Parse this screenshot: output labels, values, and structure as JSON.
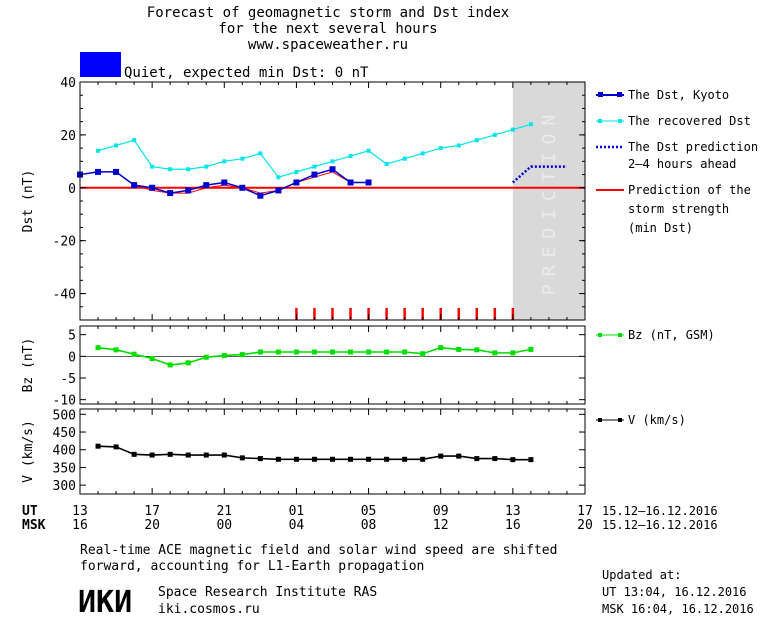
{
  "header": {
    "title_line1": "Forecast of geomagnetic storm and Dst index",
    "title_line2": "for the next several hours",
    "website": "www.spaceweather.ru",
    "status_text": "Quiet, expected min Dst: 0 nT",
    "status_color": "#0000ff"
  },
  "colors": {
    "dst_kyoto": "#0000cc",
    "recovered": "#00e5e5",
    "prediction_line": "#ff0000",
    "bz": "#00dd00",
    "v": "#000000",
    "prediction_band": "#d9d9d9",
    "prediction_label": "#ebebeb"
  },
  "prediction_label": "PREDICTION",
  "x_axis": {
    "ut_label": "UT",
    "msk_label": "MSK",
    "ut_ticks": [
      "13",
      "17",
      "21",
      "01",
      "05",
      "09",
      "13",
      "17"
    ],
    "msk_ticks": [
      "16",
      "20",
      "00",
      "04",
      "08",
      "12",
      "16",
      "20"
    ],
    "ut_range": "15.12–16.12.2016",
    "msk_range": "15.12–16.12.2016"
  },
  "chart_data": [
    {
      "type": "line",
      "panel": "dst",
      "ylabel": "Dst (nT)",
      "ylim": [
        -50,
        40
      ],
      "yticks": [
        40,
        20,
        0,
        -20,
        -40
      ],
      "x_hours_ut_from_13": true,
      "series": [
        {
          "name": "The Dst, Kyoto",
          "x": [
            0,
            1,
            2,
            3,
            4,
            5,
            6,
            7,
            8,
            9,
            10,
            11,
            12,
            13,
            14,
            15,
            16
          ],
          "values": [
            5,
            6,
            6,
            1,
            0,
            -2,
            -1,
            1,
            2,
            0,
            -3,
            -1,
            2,
            5,
            7,
            2,
            2
          ]
        },
        {
          "name": "The recovered Dst",
          "x": [
            1,
            2,
            3,
            4,
            5,
            6,
            7,
            8,
            9,
            10,
            11,
            12,
            13,
            14,
            15,
            16,
            17,
            18,
            19,
            20,
            21,
            22,
            23,
            24,
            25
          ],
          "values": [
            14,
            16,
            18,
            8,
            7,
            7,
            8,
            10,
            11,
            13,
            4,
            6,
            8,
            10,
            12,
            14,
            9,
            11,
            13,
            15,
            16,
            18,
            20,
            22,
            24
          ]
        },
        {
          "name": "The Dst prediction 2–4 hours ahead",
          "style": "dotted",
          "x": [
            24,
            25,
            26,
            27
          ],
          "values": [
            2,
            8,
            8,
            8
          ]
        },
        {
          "name": "Prediction of the storm strength (min Dst)",
          "style": "solid-red",
          "x": [
            0,
            28
          ],
          "values": [
            0,
            0
          ]
        },
        {
          "name": "",
          "style": "thin-red",
          "x": [
            0,
            1,
            2,
            3,
            4,
            5,
            6,
            7,
            8,
            9,
            10,
            11,
            12,
            13,
            14,
            15,
            16
          ],
          "values": [
            5,
            6,
            6,
            1,
            -1,
            -2,
            -2,
            0,
            1,
            0,
            -2,
            -1,
            2,
            4,
            6,
            2,
            2
          ]
        }
      ],
      "storm_markers_x": [
        12,
        13,
        14,
        15,
        16,
        17,
        18,
        19,
        20,
        21,
        22,
        23,
        24
      ],
      "prediction_band_x": [
        24,
        28
      ]
    },
    {
      "type": "line",
      "panel": "bz",
      "ylabel": "Bz (nT)",
      "ylim": [
        -11,
        7
      ],
      "yticks": [
        5,
        0,
        -5,
        -10
      ],
      "series": [
        {
          "name": "Bz (nT, GSM)",
          "x": [
            1,
            2,
            3,
            4,
            5,
            6,
            7,
            8,
            9,
            10,
            11,
            12,
            13,
            14,
            15,
            16,
            17,
            18,
            19,
            20,
            21,
            22,
            23,
            24,
            25
          ],
          "values": [
            2,
            1.5,
            0.5,
            -0.5,
            -2,
            -1.5,
            -0.2,
            0.2,
            0.4,
            1,
            1,
            1,
            1,
            1,
            1,
            1,
            1,
            1,
            0.6,
            2,
            1.6,
            1.5,
            0.8,
            0.8,
            1.6
          ]
        }
      ]
    },
    {
      "type": "line",
      "panel": "v",
      "ylabel": "V (km/s)",
      "ylim": [
        275,
        515
      ],
      "yticks": [
        500,
        450,
        400,
        350,
        300
      ],
      "series": [
        {
          "name": "V (km/s)",
          "x": [
            1,
            2,
            3,
            4,
            5,
            6,
            7,
            8,
            9,
            10,
            11,
            12,
            13,
            14,
            15,
            16,
            17,
            18,
            19,
            20,
            21,
            22,
            23,
            24,
            25
          ],
          "values": [
            410,
            408,
            387,
            385,
            387,
            385,
            385,
            385,
            377,
            375,
            373,
            373,
            373,
            373,
            373,
            373,
            373,
            373,
            373,
            382,
            382,
            375,
            375,
            372,
            372
          ]
        }
      ]
    }
  ],
  "footer": {
    "note_line1": "Real-time ACE magnetic field and solar wind speed are shifted",
    "note_line2": "forward, accounting for L1-Earth propagation",
    "logo_text": "ИКИ",
    "institute": "Space Research Institute RAS",
    "institute_url": "iki.cosmos.ru",
    "updated_label": "Updated at:",
    "updated_ut": "UT  13:04, 16.12.2016",
    "updated_msk": "MSK 16:04, 16.12.2016"
  }
}
